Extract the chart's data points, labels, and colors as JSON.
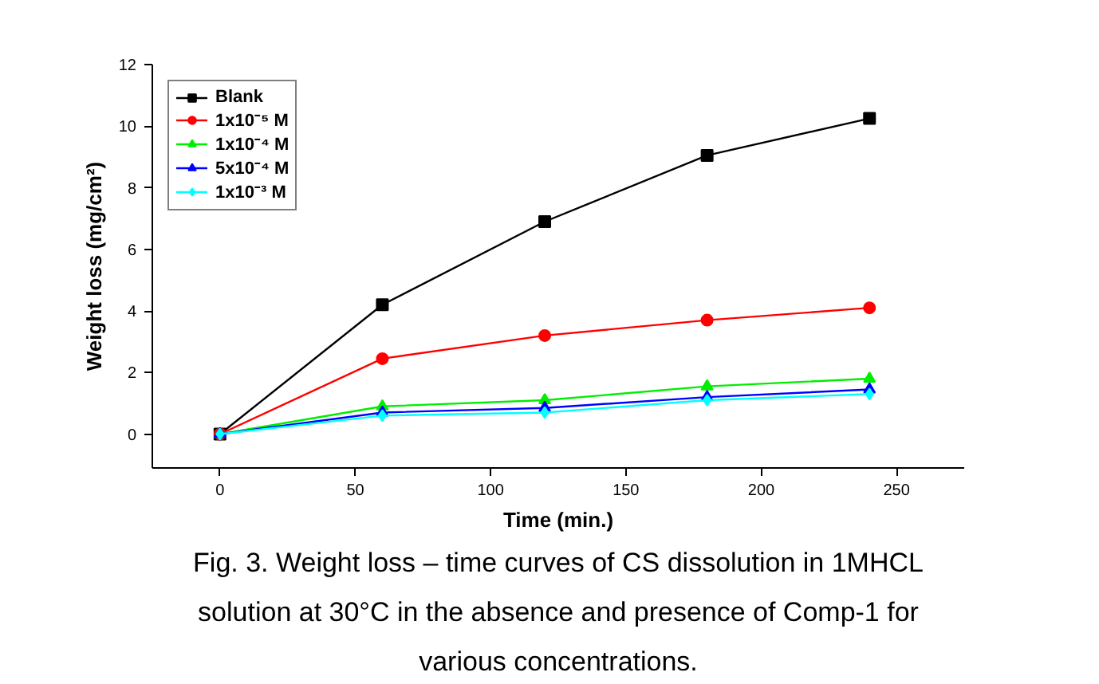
{
  "chart_data": {
    "type": "line",
    "xlabel": "Time (min.)",
    "ylabel": "Weight loss (mg/cm²)",
    "x": [
      0,
      60,
      120,
      180,
      240
    ],
    "series": [
      {
        "name": "Blank",
        "color": "#000000",
        "marker": "square",
        "values": [
          0,
          4.2,
          6.9,
          9.05,
          10.25
        ]
      },
      {
        "name": "1x10⁻⁵ M",
        "color": "#ff0000",
        "marker": "circle",
        "values": [
          0,
          2.45,
          3.2,
          3.7,
          4.1
        ]
      },
      {
        "name": "1x10⁻⁴ M",
        "color": "#00ee00",
        "marker": "triangle",
        "values": [
          0,
          0.9,
          1.1,
          1.55,
          1.8
        ]
      },
      {
        "name": "5x10⁻⁴ M",
        "color": "#0000ff",
        "marker": "triangle",
        "values": [
          0,
          0.7,
          0.85,
          1.2,
          1.45
        ]
      },
      {
        "name": "1x10⁻³ M",
        "color": "#00ffff",
        "marker": "diamond",
        "values": [
          0,
          0.6,
          0.7,
          1.1,
          1.3
        ]
      }
    ],
    "xlim": [
      -25,
      275
    ],
    "xticks": [
      0,
      50,
      100,
      150,
      200,
      250
    ],
    "ylim": [
      -1.1,
      12
    ],
    "yticks": [
      0,
      2,
      4,
      6,
      8,
      10,
      12
    ],
    "grid": false,
    "legend": "top left",
    "line_style": "solid",
    "annotations": [
      "Fig. 3. Weight loss – time curves of CS dissolution in 1MHCL solution at 30°C in the absence and presence of Comp-1 for various concentrations."
    ]
  }
}
